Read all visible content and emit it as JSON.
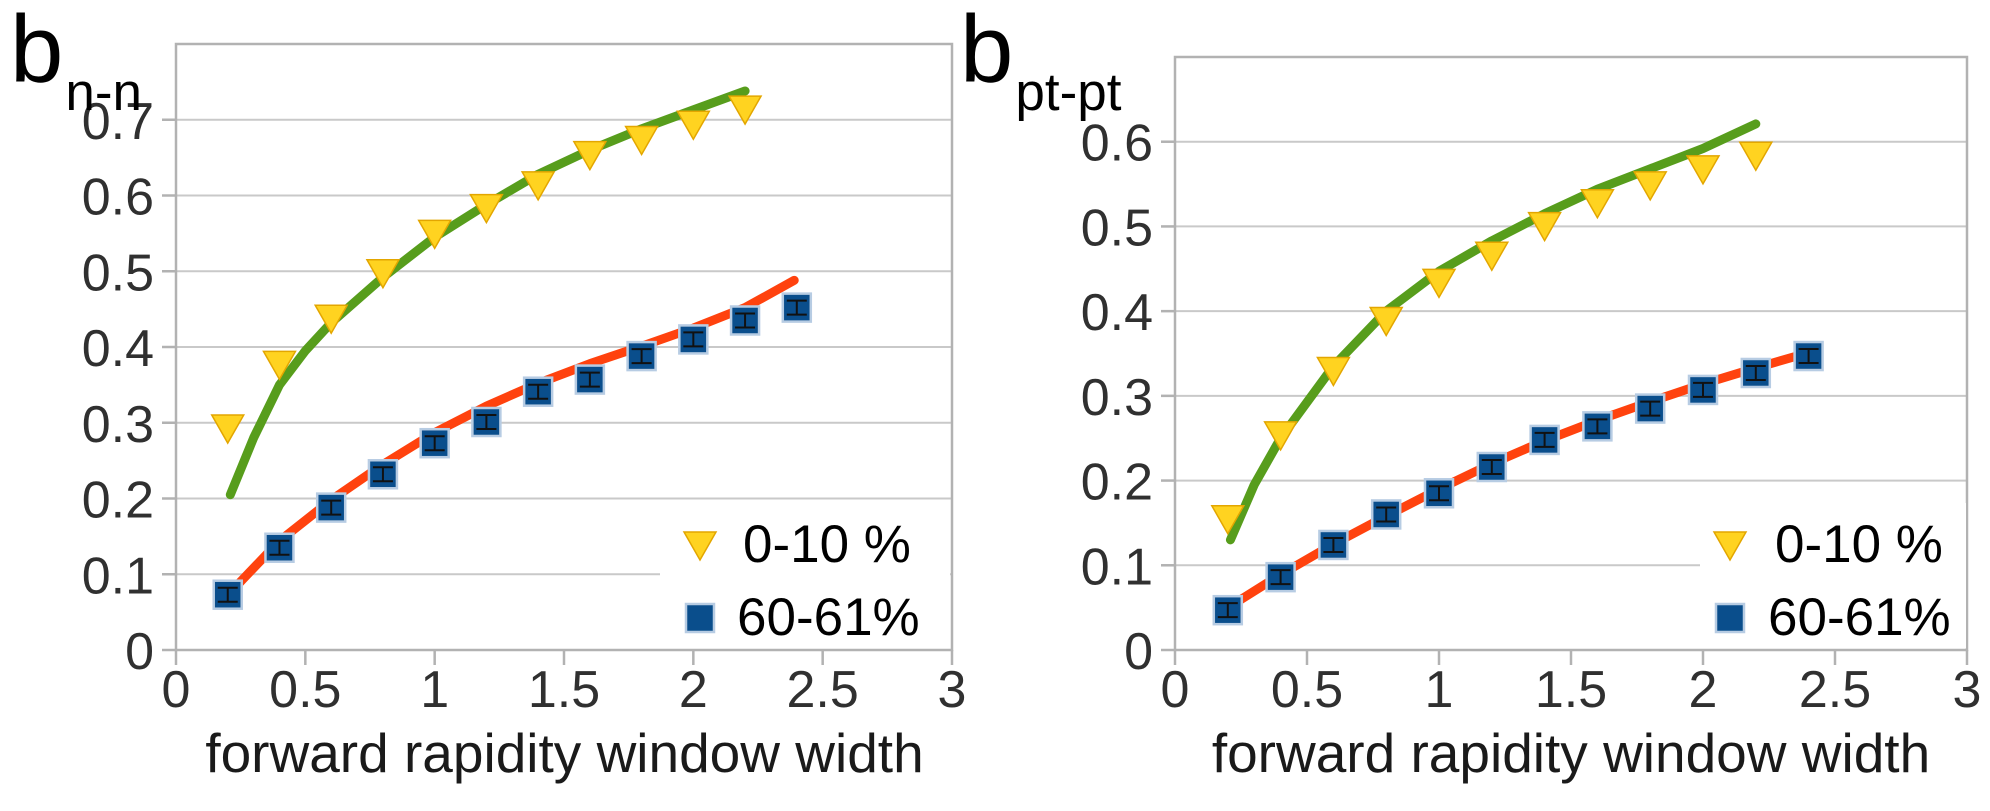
{
  "style": {
    "background": "#FFFFFF",
    "grid_color": "#C9C9C9",
    "frame_color": "#B2B2B2",
    "tick_label_color": "#303030",
    "title_color": "#000000",
    "legend_bg": "#FFFFFF",
    "colors": {
      "central_fill": "#FFD320",
      "central_edge": "#E3A600",
      "peripheral_fill": "#0A4E8C",
      "peripheral_edge": "#B7CCE3",
      "fit_central": "#579D1C",
      "fit_peripheral": "#FF420E",
      "error_bar": "#111111"
    }
  },
  "chart_data": [
    {
      "type": "scatter",
      "title": {
        "base": "b",
        "sub": "n-n"
      },
      "xlabel": "forward rapidity window width",
      "xlim": [
        0,
        3
      ],
      "ylim": [
        0,
        0.8
      ],
      "grid": true,
      "legend_position": "bottom-right",
      "x_tick_values": [
        0,
        0.5,
        1,
        1.5,
        2,
        2.5,
        3
      ],
      "x_tick_labels": [
        "0",
        "0.5",
        "1",
        "1.5",
        "2",
        "2.5",
        "3"
      ],
      "y_tick_values": [
        0,
        0.1,
        0.2,
        0.3,
        0.4,
        0.5,
        0.6,
        0.7
      ],
      "y_tick_labels": [
        "0",
        "0.1",
        "0.2",
        "0.3",
        "0.4",
        "0.5",
        "0.6",
        "0.7"
      ],
      "legend": [
        {
          "label": "0-10 %",
          "marker": "triangle-down"
        },
        {
          "label": "60-61%",
          "marker": "square"
        }
      ],
      "series": [
        {
          "name": "0-10 %",
          "marker": "triangle-down",
          "x": [
            0.2,
            0.4,
            0.6,
            0.8,
            1.0,
            1.2,
            1.4,
            1.6,
            1.8,
            2.0,
            2.2
          ],
          "y": [
            0.293,
            0.377,
            0.438,
            0.498,
            0.55,
            0.584,
            0.614,
            0.654,
            0.674,
            0.694,
            0.714
          ]
        },
        {
          "name": "60-61%",
          "marker": "square",
          "x": [
            0.2,
            0.4,
            0.6,
            0.8,
            1.0,
            1.2,
            1.4,
            1.6,
            1.8,
            2.0,
            2.2,
            2.4
          ],
          "y": [
            0.073,
            0.135,
            0.188,
            0.232,
            0.273,
            0.301,
            0.341,
            0.357,
            0.388,
            0.41,
            0.435,
            0.452
          ]
        }
      ],
      "fit_curves": [
        {
          "for": "0-10 %",
          "points": [
            [
              0.21,
              0.205
            ],
            [
              0.3,
              0.28
            ],
            [
              0.4,
              0.35
            ],
            [
              0.5,
              0.395
            ],
            [
              0.6,
              0.432
            ],
            [
              0.8,
              0.492
            ],
            [
              1.0,
              0.545
            ],
            [
              1.2,
              0.588
            ],
            [
              1.4,
              0.628
            ],
            [
              1.6,
              0.66
            ],
            [
              1.8,
              0.688
            ],
            [
              2.0,
              0.713
            ],
            [
              2.2,
              0.738
            ]
          ]
        },
        {
          "for": "60-61%",
          "points": [
            [
              0.235,
              0.085
            ],
            [
              0.4,
              0.144
            ],
            [
              0.6,
              0.198
            ],
            [
              0.8,
              0.245
            ],
            [
              1.0,
              0.287
            ],
            [
              1.2,
              0.322
            ],
            [
              1.4,
              0.352
            ],
            [
              1.6,
              0.378
            ],
            [
              1.8,
              0.401
            ],
            [
              2.0,
              0.425
            ],
            [
              2.2,
              0.452
            ],
            [
              2.39,
              0.488
            ]
          ]
        }
      ]
    },
    {
      "type": "scatter",
      "title": {
        "base": "b",
        "sub": "pt-pt"
      },
      "xlabel": "forward rapidity window width",
      "xlim": [
        0,
        3
      ],
      "ylim": [
        0,
        0.7
      ],
      "grid": true,
      "legend_position": "bottom-right",
      "x_tick_values": [
        0,
        0.5,
        1,
        1.5,
        2,
        2.5,
        3
      ],
      "x_tick_labels": [
        "0",
        "0.5",
        "1",
        "1.5",
        "2",
        "2.5",
        "3"
      ],
      "y_tick_values": [
        0,
        0.1,
        0.2,
        0.3,
        0.4,
        0.5,
        0.6
      ],
      "y_tick_labels": [
        "0",
        "0.1",
        "0.2",
        "0.3",
        "0.4",
        "0.5",
        "0.6"
      ],
      "legend": [
        {
          "label": "0-10 %",
          "marker": "triangle-down"
        },
        {
          "label": "60-61%",
          "marker": "square"
        }
      ],
      "series": [
        {
          "name": "0-10 %",
          "marker": "triangle-down",
          "x": [
            0.2,
            0.4,
            0.6,
            0.8,
            1.0,
            1.2,
            1.4,
            1.6,
            1.8,
            2.0,
            2.2
          ],
          "y": [
            0.155,
            0.254,
            0.33,
            0.389,
            0.434,
            0.466,
            0.501,
            0.528,
            0.549,
            0.568,
            0.584
          ]
        },
        {
          "name": "60-61%",
          "marker": "square",
          "x": [
            0.2,
            0.4,
            0.6,
            0.8,
            1.0,
            1.2,
            1.4,
            1.6,
            1.8,
            2.0,
            2.2,
            2.4
          ],
          "y": [
            0.047,
            0.086,
            0.124,
            0.16,
            0.185,
            0.216,
            0.248,
            0.264,
            0.285,
            0.307,
            0.327,
            0.347
          ]
        }
      ],
      "fit_curves": [
        {
          "for": "0-10 %",
          "points": [
            [
              0.21,
              0.13
            ],
            [
              0.3,
              0.195
            ],
            [
              0.4,
              0.25
            ],
            [
              0.6,
              0.335
            ],
            [
              0.8,
              0.4
            ],
            [
              1.0,
              0.447
            ],
            [
              1.2,
              0.483
            ],
            [
              1.4,
              0.515
            ],
            [
              1.6,
              0.544
            ],
            [
              1.8,
              0.568
            ],
            [
              2.0,
              0.592
            ],
            [
              2.2,
              0.621
            ]
          ]
        },
        {
          "for": "60-61%",
          "points": [
            [
              0.2,
              0.05
            ],
            [
              0.4,
              0.089
            ],
            [
              0.6,
              0.125
            ],
            [
              0.8,
              0.158
            ],
            [
              1.0,
              0.19
            ],
            [
              1.2,
              0.22
            ],
            [
              1.4,
              0.247
            ],
            [
              1.6,
              0.271
            ],
            [
              1.8,
              0.293
            ],
            [
              2.0,
              0.314
            ],
            [
              2.2,
              0.333
            ],
            [
              2.4,
              0.351
            ]
          ]
        }
      ]
    }
  ]
}
